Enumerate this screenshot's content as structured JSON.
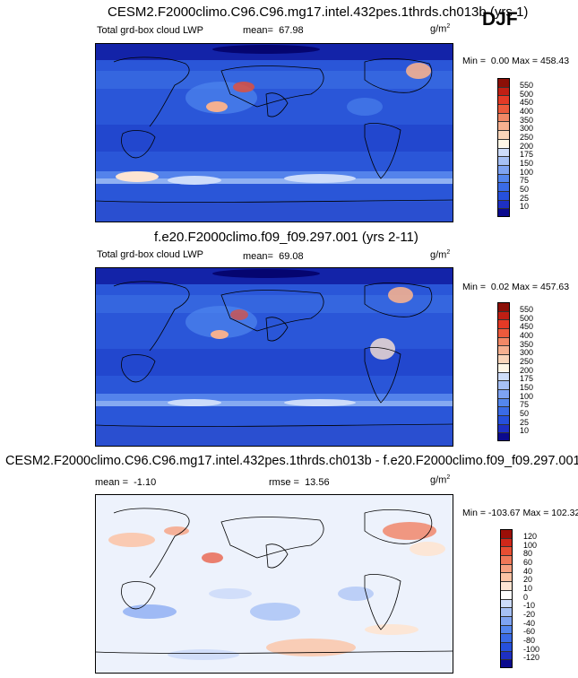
{
  "season": "DJF",
  "colors": {
    "abs": [
      "#0b0a8e",
      "#1e30c4",
      "#2650dc",
      "#3a6be6",
      "#5486ee",
      "#7ea3f2",
      "#a6c0f5",
      "#cddcfa",
      "#fff6e6",
      "#fad5ba",
      "#f6b090",
      "#f28866",
      "#ec5a3c",
      "#e33a26",
      "#c01f14",
      "#8b0f07"
    ],
    "diff": [
      "#0b0a8e",
      "#1e30c4",
      "#2650dc",
      "#3a6be6",
      "#5486ee",
      "#7ea3f2",
      "#a6c0f5",
      "#cddcfa",
      "#ffffff",
      "#fde4d2",
      "#fbc3a4",
      "#f6a080",
      "#f07858",
      "#e84e32",
      "#d0281a",
      "#9c0f08"
    ]
  },
  "panels": [
    {
      "title": "CESM2.F2000climo.C96.C96.mg17.intel.432pes.1thrds.ch013b (yrs 1)",
      "variable": "Total grd-box cloud LWP",
      "mean_label": "mean=",
      "mean": "67.98",
      "rmse_label": "",
      "rmse": "",
      "units": "g/m",
      "units_exp": "2",
      "min_label": "Min =",
      "min": "0.00",
      "max_label": "Max =",
      "max": "458.43",
      "levels": [
        "550",
        "500",
        "450",
        "400",
        "350",
        "300",
        "250",
        "200",
        "175",
        "150",
        "100",
        "75",
        "50",
        "25",
        "10"
      ]
    },
    {
      "title": "f.e20.F2000climo.f09_f09.297.001 (yrs 2-11)",
      "variable": "Total grd-box cloud LWP",
      "mean_label": "mean=",
      "mean": "69.08",
      "rmse_label": "",
      "rmse": "",
      "units": "g/m",
      "units_exp": "2",
      "min_label": "Min =",
      "min": "0.02",
      "max_label": "Max =",
      "max": "457.63",
      "levels": [
        "550",
        "500",
        "450",
        "400",
        "350",
        "300",
        "250",
        "200",
        "175",
        "150",
        "100",
        "75",
        "50",
        "25",
        "10"
      ]
    },
    {
      "title": "CESM2.F2000climo.C96.C96.mg17.intel.432pes.1thrds.ch013b - f.e20.F2000climo.f09_f09.297.001",
      "variable": "",
      "mean_label": "mean =",
      "mean": "-1.10",
      "rmse_label": "rmse =",
      "rmse": "13.56",
      "units": "g/m",
      "units_exp": "2",
      "min_label": "Min =",
      "min": "-103.67",
      "max_label": "Max =",
      "max": "102.32",
      "levels": [
        "120",
        "100",
        "80",
        "60",
        "40",
        "20",
        "10",
        "0",
        "-10",
        "-20",
        "-40",
        "-60",
        "-80",
        "-100",
        "-120"
      ]
    }
  ],
  "chart_data": [
    {
      "type": "heatmap",
      "title": "CESM2.F2000climo.C96.C96.mg17.intel.432pes.1thrds.ch013b (yrs 1)",
      "field": "Total grd-box cloud LWP",
      "units": "g/m2",
      "mean": 67.98,
      "min": 0.0,
      "max": 458.43,
      "contour_levels": [
        10,
        25,
        50,
        75,
        100,
        150,
        175,
        200,
        250,
        300,
        350,
        400,
        450,
        500,
        550
      ],
      "colorbar": "right"
    },
    {
      "type": "heatmap",
      "title": "f.e20.F2000climo.f09_f09.297.001 (yrs 2-11)",
      "field": "Total grd-box cloud LWP",
      "units": "g/m2",
      "mean": 69.08,
      "min": 0.02,
      "max": 457.63,
      "contour_levels": [
        10,
        25,
        50,
        75,
        100,
        150,
        175,
        200,
        250,
        300,
        350,
        400,
        450,
        500,
        550
      ],
      "colorbar": "right"
    },
    {
      "type": "heatmap",
      "title": "CESM2.F2000climo.C96.C96.mg17.intel.432pes.1thrds.ch013b - f.e20.F2000climo.f09_f09.297.001",
      "units": "g/m2",
      "mean": -1.1,
      "rmse": 13.56,
      "min": -103.67,
      "max": 102.32,
      "contour_levels": [
        -120,
        -100,
        -80,
        -60,
        -40,
        -20,
        -10,
        0,
        10,
        20,
        40,
        60,
        80,
        100,
        120
      ],
      "colorbar": "right"
    }
  ]
}
